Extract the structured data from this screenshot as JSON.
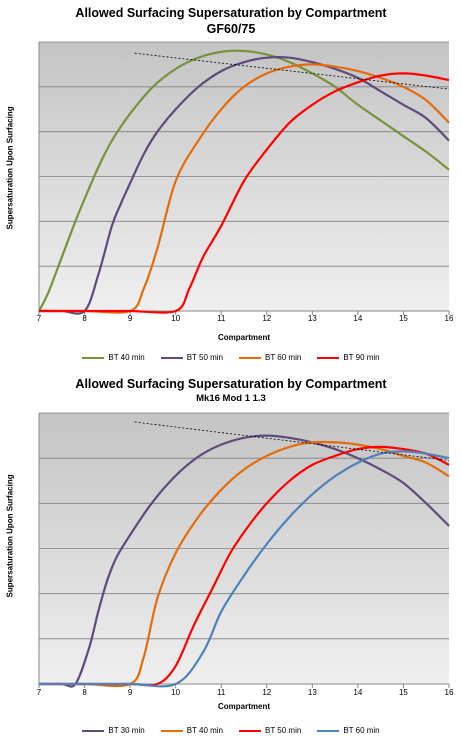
{
  "chart_data": [
    {
      "type": "line",
      "title": "Allowed Surfacing Supersaturation by Compartment",
      "subtitle": "GF60/75",
      "xlabel": "Compartment",
      "ylabel": "Supersaturation Upon Surfacing",
      "xlim": [
        7,
        16
      ],
      "xticks": [
        "7",
        "8",
        "9",
        "10",
        "11",
        "12",
        "13",
        "14",
        "15",
        "16"
      ],
      "ylim": [
        0,
        6
      ],
      "grid": true,
      "legend_position": "bottom",
      "series": [
        {
          "name": "BT 40 min",
          "color": "#77933c",
          "x": [
            7.0,
            7.2,
            7.5,
            7.8,
            8.0,
            8.3,
            8.6,
            9.0,
            9.5,
            10.0,
            10.5,
            11.0,
            11.5,
            12.0,
            12.5,
            13.0,
            13.5,
            14.0,
            14.5,
            15.0,
            15.5,
            16.0
          ],
          "y": [
            0.0,
            0.4,
            1.2,
            2.0,
            2.5,
            3.2,
            3.8,
            4.4,
            5.0,
            5.4,
            5.65,
            5.78,
            5.8,
            5.72,
            5.55,
            5.3,
            5.0,
            4.6,
            4.25,
            3.9,
            3.55,
            3.15
          ]
        },
        {
          "name": "BT 50 min",
          "color": "#604a7b",
          "x": [
            7.0,
            7.5,
            8.0,
            8.3,
            8.6,
            8.8,
            9.0,
            9.3,
            9.6,
            10.0,
            10.5,
            11.0,
            11.5,
            12.0,
            12.5,
            13.0,
            13.5,
            14.0,
            14.5,
            15.0,
            15.5,
            16.0
          ],
          "y": [
            0.0,
            0.0,
            0.0,
            0.8,
            1.9,
            2.4,
            2.85,
            3.5,
            4.0,
            4.5,
            5.0,
            5.35,
            5.55,
            5.65,
            5.65,
            5.55,
            5.4,
            5.2,
            4.9,
            4.6,
            4.3,
            3.8
          ]
        },
        {
          "name": "BT 60 min",
          "color": "#e46c0a",
          "x": [
            7.0,
            8.0,
            9.0,
            9.3,
            9.6,
            10.0,
            10.5,
            11.0,
            11.5,
            12.0,
            12.5,
            13.0,
            13.5,
            14.0,
            14.5,
            15.0,
            15.5,
            16.0
          ],
          "y": [
            0.0,
            0.0,
            0.0,
            0.5,
            1.4,
            2.9,
            3.8,
            4.5,
            5.0,
            5.3,
            5.45,
            5.5,
            5.45,
            5.35,
            5.2,
            5.0,
            4.7,
            4.2
          ]
        },
        {
          "name": "BT 90 min",
          "color": "#ff0000",
          "x": [
            7.0,
            8.0,
            9.0,
            10.0,
            10.3,
            10.6,
            11.0,
            11.5,
            12.0,
            12.5,
            13.0,
            13.5,
            14.0,
            14.5,
            15.0,
            15.5,
            16.0
          ],
          "y": [
            0.0,
            0.0,
            0.0,
            0.0,
            0.5,
            1.2,
            1.9,
            2.9,
            3.6,
            4.2,
            4.6,
            4.9,
            5.1,
            5.25,
            5.3,
            5.25,
            5.15
          ]
        }
      ],
      "reference_line": {
        "x": [
          9.1,
          16.0
        ],
        "y": [
          5.75,
          4.95
        ]
      }
    },
    {
      "type": "line",
      "title": "Allowed Surfacing Supersaturation by Compartment",
      "subtitle": "Mk16 Mod 1 1.3",
      "xlabel": "Compartment",
      "ylabel": "Supersaturation Upon Surfacing",
      "xlim": [
        7,
        16
      ],
      "xticks": [
        "7",
        "8",
        "9",
        "10",
        "11",
        "12",
        "13",
        "14",
        "15",
        "16"
      ],
      "ylim": [
        0,
        6
      ],
      "grid": true,
      "legend_position": "bottom",
      "series": [
        {
          "name": "BT 30 min",
          "color": "#604a7b",
          "x": [
            7.0,
            7.5,
            7.8,
            8.1,
            8.3,
            8.5,
            8.7,
            9.0,
            9.4,
            9.8,
            10.2,
            10.6,
            11.0,
            11.5,
            12.0,
            12.5,
            13.0,
            13.5,
            14.0,
            14.5,
            15.0,
            15.5,
            16.0
          ],
          "y": [
            0.0,
            0.0,
            0.0,
            0.8,
            1.6,
            2.3,
            2.8,
            3.3,
            3.9,
            4.4,
            4.8,
            5.1,
            5.3,
            5.45,
            5.5,
            5.45,
            5.35,
            5.2,
            5.0,
            4.75,
            4.45,
            4.0,
            3.5
          ]
        },
        {
          "name": "BT 40 min",
          "color": "#e46c0a",
          "x": [
            7.0,
            8.0,
            9.0,
            9.3,
            9.6,
            10.0,
            10.5,
            11.0,
            11.5,
            12.0,
            12.5,
            13.0,
            13.5,
            14.0,
            14.5,
            15.0,
            15.5,
            16.0
          ],
          "y": [
            0.0,
            0.0,
            0.0,
            0.6,
            1.9,
            2.9,
            3.7,
            4.3,
            4.75,
            5.05,
            5.25,
            5.35,
            5.35,
            5.3,
            5.2,
            5.05,
            4.9,
            4.6
          ]
        },
        {
          "name": "BT 50 min",
          "color": "#ff0000",
          "x": [
            7.0,
            8.0,
            9.0,
            9.6,
            10.0,
            10.4,
            10.8,
            11.2,
            11.6,
            12.0,
            12.5,
            13.0,
            13.5,
            14.0,
            14.5,
            15.0,
            15.5,
            16.0
          ],
          "y": [
            0.0,
            0.0,
            0.0,
            0.0,
            0.4,
            1.3,
            2.1,
            2.9,
            3.5,
            4.0,
            4.5,
            4.85,
            5.05,
            5.2,
            5.25,
            5.2,
            5.1,
            4.85
          ]
        },
        {
          "name": "BT 60 min",
          "color": "#4f81bd",
          "x": [
            7.0,
            8.0,
            9.0,
            10.0,
            10.6,
            11.0,
            11.5,
            12.0,
            12.5,
            13.0,
            13.5,
            14.0,
            14.5,
            15.0,
            15.5,
            16.0
          ],
          "y": [
            0.0,
            0.0,
            0.0,
            0.0,
            0.7,
            1.6,
            2.4,
            3.1,
            3.7,
            4.2,
            4.6,
            4.9,
            5.1,
            5.15,
            5.1,
            5.0
          ]
        }
      ],
      "reference_line": {
        "x": [
          9.1,
          16.0
        ],
        "y": [
          5.8,
          4.95
        ]
      }
    }
  ]
}
